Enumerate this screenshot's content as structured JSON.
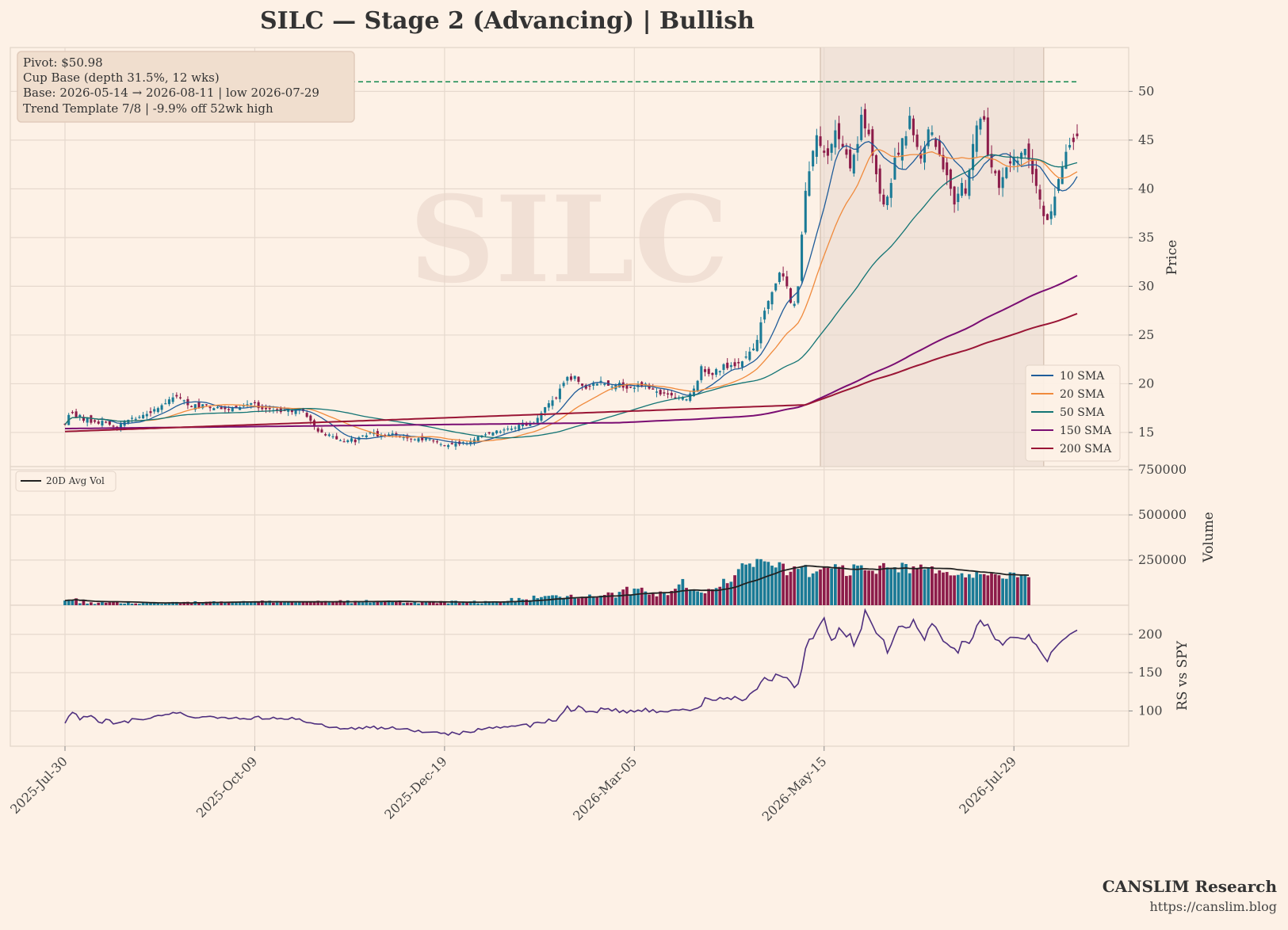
{
  "title": "SILC  —  Stage 2 (Advancing)  |  Bullish",
  "watermark": "SILC",
  "info_box": [
    "Pivot: $50.98",
    "Cup Base  (depth 31.5%, 12 wks)",
    "Base: 2026-05-14 → 2026-08-11  |  low 2026-07-29",
    "Trend Template 7/8  |  -9.9% off 52wk high"
  ],
  "footer": {
    "brand": "CANSLIM Research",
    "url": "https://canslim.blog"
  },
  "colors": {
    "background": "#fdf1e6",
    "up": "#1a7a96",
    "down": "#8c1c4a",
    "pivot_line": "#13884f",
    "base_shade": "#efe1d6",
    "sma10": "#1f5c99",
    "sma20": "#f08a3c",
    "sma50": "#127474",
    "sma150": "#7a0d72",
    "sma200": "#9a1535",
    "avg_vol": "#222222",
    "rs_line": "#4f2f7f",
    "grid": "#e6d9ce"
  },
  "chart_data": [
    {
      "type": "candlestick",
      "panel": "price",
      "ylabel": "Price",
      "ylim": [
        11.5,
        54.5
      ],
      "yticks": [
        15,
        20,
        25,
        30,
        35,
        40,
        45,
        50
      ],
      "pivot": 50.98,
      "base_start_index": 203,
      "base_end_index": 263,
      "x_axis_ticks": [
        {
          "index": 0,
          "label": "2025-Jul-30"
        },
        {
          "index": 51,
          "label": "2025-Oct-09"
        },
        {
          "index": 102,
          "label": "2025-Dec-19"
        },
        {
          "index": 153,
          "label": "2026-Mar-05"
        },
        {
          "index": 204,
          "label": "2026-May-15"
        },
        {
          "index": 255,
          "label": "2026-Jul-29"
        }
      ],
      "closes": [
        15.8,
        16.8,
        17.0,
        16.5,
        16.8,
        16.2,
        16.5,
        16.0,
        16.1,
        15.9,
        16.2,
        16.0,
        15.8,
        15.6,
        15.4,
        15.9,
        16.2,
        16.3,
        16.5,
        16.4,
        16.6,
        16.8,
        16.9,
        17.0,
        17.4,
        17.5,
        17.8,
        18.0,
        18.4,
        18.6,
        18.7,
        18.5,
        18.3,
        17.8,
        17.6,
        17.9,
        17.5,
        17.9,
        17.8,
        17.5,
        17.5,
        17.6,
        17.4,
        17.4,
        17.3,
        17.5,
        17.5,
        17.6,
        17.8,
        17.9,
        18.0,
        18.0,
        17.5,
        17.4,
        17.4,
        17.4,
        17.3,
        17.3,
        17.1,
        17.2,
        17.3,
        17.1,
        17.4,
        17.5,
        17.2,
        16.6,
        16.2,
        15.6,
        15.1,
        15.0,
        14.7,
        14.8,
        14.6,
        14.3,
        14.2,
        14.0,
        14.2,
        14.4,
        14.0,
        14.5,
        14.7,
        14.7,
        15.0,
        15.0,
        14.6,
        14.7,
        14.6,
        14.8,
        14.9,
        14.7,
        14.5,
        14.5,
        14.4,
        14.3,
        14.3,
        14.4,
        14.2,
        14.4,
        14.3,
        14.1,
        14.0,
        13.8,
        13.6,
        13.7,
        13.8,
        13.9,
        13.8,
        14.0,
        13.9,
        14.1,
        14.3,
        14.6,
        14.7,
        14.8,
        14.9,
        15.0,
        15.2,
        15.1,
        15.3,
        15.4,
        15.4,
        15.5,
        15.8,
        16.0,
        15.7,
        15.9,
        16.0,
        16.5,
        17.0,
        17.6,
        18.0,
        18.3,
        18.5,
        19.5,
        20.1,
        20.7,
        20.4,
        20.8,
        20.2,
        19.8,
        19.5,
        19.7,
        20.1,
        20.0,
        20.3,
        20.0,
        19.8,
        19.7,
        19.9,
        20.1,
        19.6,
        19.5,
        19.6,
        19.6,
        19.9,
        19.7,
        20.0,
        19.5,
        19.4,
        19.2,
        18.9,
        19.0,
        18.9,
        18.8,
        18.5,
        18.6,
        18.6,
        18.4,
        19.0,
        19.5,
        20.3,
        21.8,
        21.2,
        21.0,
        20.9,
        21.5,
        21.3,
        22.0,
        21.6,
        21.9,
        21.8,
        22.1,
        22.3,
        22.8,
        23.3,
        23.6,
        24.5,
        26.3,
        27.5,
        28.5,
        29.4,
        30.3,
        31.4,
        31.0,
        30.0,
        28.3,
        28.2,
        30.0,
        35.3,
        39.8,
        41.8,
        43.9,
        45.5,
        44.4,
        43.7,
        43.4,
        44.6,
        46.0,
        45.1,
        44.3,
        43.5,
        42.1,
        43.5,
        44.6,
        47.6,
        46.2,
        45.6,
        43.4,
        41.5,
        39.5,
        38.4,
        39.2,
        40.6,
        43.2,
        43.5,
        45.2,
        45.4,
        47.5,
        45.5,
        44.3,
        43.1,
        44.3,
        46.1,
        45.8,
        44.3,
        43.5,
        42.0,
        41.4,
        40.0,
        38.4,
        39.5,
        40.6,
        39.5,
        41.9,
        44.6,
        46.5,
        47.2,
        47.1,
        43.4,
        42.2,
        41.6,
        40.1,
        41.2,
        42.2,
        42.6,
        43.2,
        42.9,
        43.7,
        44.1,
        43.0,
        41.5,
        40.3,
        38.9,
        37.2,
        36.8,
        37.7,
        39.2,
        41.0,
        42.3,
        43.8,
        44.5,
        44.8,
        45.4
      ],
      "sma": [
        {
          "name": "10 SMA",
          "period": 10,
          "color_key": "sma10"
        },
        {
          "name": "20 SMA",
          "period": 20,
          "color_key": "sma20"
        },
        {
          "name": "50 SMA",
          "period": 50,
          "color_key": "sma50"
        },
        {
          "name": "150 SMA",
          "period": 150,
          "color_key": "sma150"
        },
        {
          "name": "200 SMA",
          "period": 200,
          "color_key": "sma200"
        }
      ],
      "sma_start": {
        "150 SMA": 15.4,
        "200 SMA": 15.1
      },
      "sma_end": {
        "150 SMA": 31.1,
        "200 SMA": 27.2
      },
      "legend_position": "lower right"
    },
    {
      "type": "bar",
      "panel": "volume",
      "ylabel": "Volume",
      "ylim": [
        0,
        750000
      ],
      "yticks": [
        250000,
        500000,
        750000
      ],
      "ytick_labels": [
        "250000",
        "500000",
        "750000"
      ],
      "avg_label": "20D Avg Vol",
      "legend_position": "upper left",
      "values": [
        26000,
        30000,
        30000,
        38000,
        11000,
        31000,
        9000,
        16000,
        7000,
        14000,
        17000,
        14000,
        16000,
        17000,
        21000,
        10000,
        9000,
        17000,
        9000,
        10000,
        8000,
        15000,
        16000,
        13000,
        14000,
        11000,
        8000,
        9000,
        11000,
        18000,
        18000,
        10000,
        18000,
        19000,
        15000,
        22000,
        15000,
        16000,
        19000,
        20000,
        22000,
        16000,
        21000,
        16000,
        18000,
        18000,
        20000,
        17000,
        23000,
        15000,
        20000,
        17000,
        17000,
        26000,
        20000,
        25000,
        14000,
        23000,
        19000,
        17000,
        17000,
        20000,
        15000,
        21000,
        16000,
        18000,
        18000,
        17000,
        25000,
        18000,
        23000,
        15000,
        21000,
        23000,
        28000,
        18000,
        27000,
        11000,
        24000,
        21000,
        16000,
        29000,
        15000,
        22000,
        22000,
        20000,
        23000,
        26000,
        23000,
        18000,
        26000,
        12000,
        15000,
        13000,
        18000,
        10000,
        18000,
        17000,
        16000,
        18000,
        11000,
        23000,
        17000,
        10000,
        25000,
        25000,
        13000,
        19000,
        18000,
        21000,
        25000,
        11000,
        11000,
        23000,
        21000,
        15000,
        17000,
        15000,
        22000,
        24000,
        40000,
        23000,
        40000,
        32000,
        32000,
        28000,
        53000,
        39000,
        45000,
        51000,
        52000,
        55000,
        55000,
        47000,
        40000,
        51000,
        58000,
        38000,
        38000,
        47000,
        47000,
        59000,
        47000,
        43000,
        53000,
        57000,
        71000,
        69000,
        42000,
        74000,
        87000,
        102000,
        59000,
        92000,
        91000,
        97000,
        76000,
        59000,
        67000,
        49000,
        76000,
        71000,
        56000,
        79000,
        91000,
        115000,
        145000,
        96000,
        86000,
        88000,
        77000,
        70000,
        66000,
        90000,
        88000,
        95000,
        102000,
        146000,
        122000,
        130000,
        166000,
        200000,
        232000,
        225000,
        231000,
        212000,
        256000,
        255000,
        243000,
        240000,
        219000,
        209000,
        238000,
        230000,
        166000,
        185000,
        215000,
        201000,
        211000,
        223000,
        156000,
        176000,
        187000,
        198000,
        209000,
        207000,
        203000,
        227000,
        212000,
        221000,
        162000,
        165000,
        226000,
        219000,
        221000,
        194000,
        192000,
        191000,
        174000,
        219000,
        233000,
        209000,
        200000,
        210000,
        182000,
        235000,
        228000,
        177000,
        215000,
        201000,
        225000,
        199000,
        206000,
        215000,
        176000,
        193000,
        181000,
        184000,
        165000,
        165000,
        168000,
        177000,
        154000,
        172000,
        152000,
        186000,
        172000,
        172000,
        165000,
        177000,
        171000,
        166000,
        148000,
        146000,
        182000,
        180000,
        155000,
        166000,
        164000,
        155000
      ]
    },
    {
      "type": "line",
      "panel": "rs",
      "ylabel": "RS vs SPY",
      "ylim": [
        54,
        238
      ],
      "yticks": [
        100,
        150,
        200
      ],
      "values": [
        84.0,
        93.0,
        98.2,
        95.9,
        88.4,
        92.8,
        92.3,
        93.9,
        90.8,
        85.5,
        84.2,
        89.2,
        88.2,
        83.0,
        84.2,
        85.3,
        87.0,
        84.6,
        90.0,
        89.6,
        88.9,
        88.5,
        89.6,
        90.6,
        93.0,
        94.2,
        93.9,
        95.3,
        95.7,
        98.0,
        97.0,
        98.1,
        95.4,
        93.0,
        91.9,
        90.9,
        91.2,
        92.5,
        92.6,
        93.1,
        92.4,
        90.4,
        91.7,
        91.5,
        89.9,
        90.6,
        91.7,
        89.5,
        90.1,
        89.4,
        89.2,
        92.1,
        93.1,
        89.4,
        89.6,
        89.6,
        91.8,
        89.7,
        90.4,
        89.1,
        89.3,
        91.5,
        89.0,
        89.8,
        86.6,
        84.8,
        84.6,
        83.3,
        82.8,
        82.9,
        79.8,
        78.4,
        78.6,
        78.9,
        76.4,
        76.9,
        76.6,
        78.4,
        76.0,
        78.5,
        76.7,
        79.7,
        78.0,
        80.2,
        76.3,
        78.8,
        76.5,
        77.3,
        79.3,
        76.4,
        76.2,
        76.6,
        77.0,
        74.7,
        72.9,
        74.8,
        71.9,
        72.2,
        72.3,
        72.5,
        72.5,
        70.7,
        71.3,
        68.5,
        72.5,
        70.8,
        69.3,
        73.4,
        72.7,
        71.9,
        72.7,
        77.0,
        75.7,
        77.1,
        78.7,
        77.4,
        79.5,
        77.8,
        79.5,
        79.0,
        80.5,
        80.2,
        81.3,
        82.3,
        82.8,
        78.9,
        84.4,
        85.3,
        84.5,
        84.6,
        89.5,
        86.8,
        87.1,
        93.8,
        99.0,
        106.3,
        99.7,
        101.0,
        106.6,
        103.9,
        98.7,
        99.5,
        99.2,
        97.9,
        103.9,
        102.3,
        103.1,
        99.9,
        103.0,
        98.0,
        100.8,
        97.4,
        101.0,
        98.8,
        101.1,
        99.5,
        103.5,
        98.8,
        101.8,
        97.8,
        99.7,
        99.0,
        98.9,
        101.0,
        101.4,
        101.0,
        102.4,
        101.6,
        100.5,
        102.4,
        103.7,
        106.5,
        117.3,
        115.9,
        114.0,
        114.0,
        117.7,
        115.4,
        117.5,
        114.9,
        118.9,
        116.1,
        113.4,
        115.5,
        121.9,
        125.6,
        128.5,
        137.4,
        143.6,
        140.3,
        139.4,
        148.1,
        146.3,
        143.9,
        143.4,
        137.8,
        130.5,
        135.5,
        154.5,
        181.5,
        193.6,
        194.5,
        205.1,
        213.9,
        221.5,
        202.8,
        192.3,
        195.2,
        208.3,
        202.9,
        196.6,
        200.9,
        184.9,
        196.1,
        207.1,
        231.7,
        222.0,
        212.0,
        201.5,
        197.0,
        192.6,
        175.7,
        186.2,
        199.1,
        210.0,
        210.6,
        208.3,
        209.4,
        219.4,
        208.4,
        201.0,
        192.5,
        206.9,
        213.9,
        209.5,
        200.5,
        191.1,
        187.9,
        183.4,
        181.6,
        175.6,
        190.7,
        190.5,
        188.2,
        196.1,
        211.0,
        218.3,
        211.1,
        213.1,
        202.3,
        193.3,
        191.8,
        185.9,
        192.2,
        196.1,
        195.9,
        195.7,
        194.5,
        193.8,
        199.8,
        190.2,
        186.4,
        178.5,
        171.2,
        164.5,
        176.4,
        181.9,
        187.3,
        192.0,
        195.6,
        200.0,
        202.7,
        205.4
      ]
    }
  ]
}
